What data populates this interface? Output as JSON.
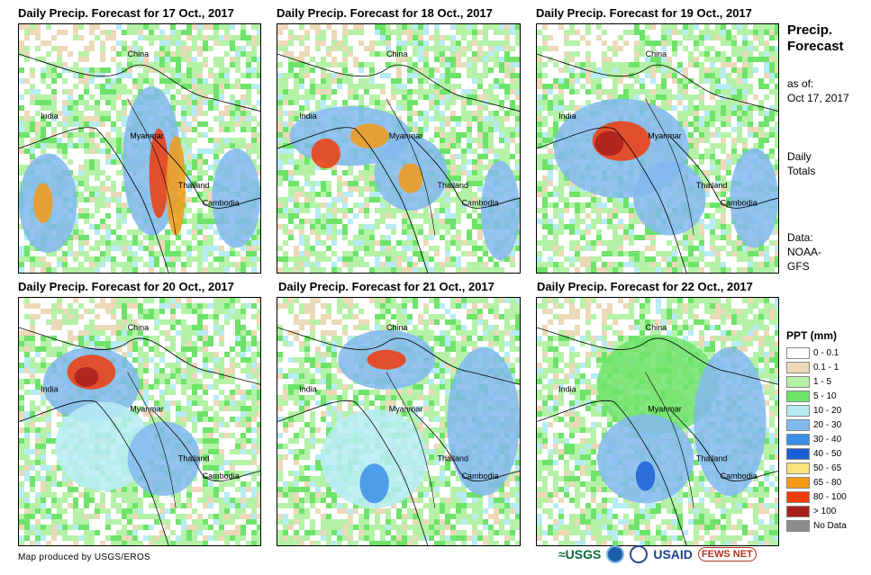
{
  "panels": [
    {
      "title": "Daily Precip. Forecast for 17 Oct., 2017"
    },
    {
      "title": "Daily Precip. Forecast for 18 Oct., 2017"
    },
    {
      "title": "Daily Precip. Forecast for 19 Oct., 2017"
    },
    {
      "title": "Daily Precip. Forecast for 20 Oct., 2017"
    },
    {
      "title": "Daily Precip. Forecast for 21 Oct., 2017"
    },
    {
      "title": "Daily Precip. Forecast for 22 Oct., 2017"
    }
  ],
  "map_labels": {
    "china": "China",
    "india": "India",
    "myanmar": "Myanmar",
    "thailand": "Thailand",
    "cambodia": "Cambodia"
  },
  "side": {
    "title_line1": "Precip.",
    "title_line2": "Forecast",
    "asof_label": "as of:",
    "asof_date": "Oct 17, 2017",
    "daily1": "Daily",
    "daily2": "Totals",
    "data1": "Data:",
    "data2": "NOAA-",
    "data3": "GFS"
  },
  "legend": {
    "title": "PPT (mm)",
    "items": [
      {
        "label": "0 - 0.1",
        "color": "#ffffff"
      },
      {
        "label": "0.1 - 1",
        "color": "#ecd9b8"
      },
      {
        "label": "1 - 5",
        "color": "#b5f2a8"
      },
      {
        "label": "5 - 10",
        "color": "#6ee36a"
      },
      {
        "label": "10 - 20",
        "color": "#b7ecf4"
      },
      {
        "label": "20 - 30",
        "color": "#82b9ee"
      },
      {
        "label": "30 - 40",
        "color": "#3c8fe6"
      },
      {
        "label": "40 - 50",
        "color": "#1a5fd6"
      },
      {
        "label": "50 - 65",
        "color": "#fbe27a"
      },
      {
        "label": "65 - 80",
        "color": "#f59a17"
      },
      {
        "label": "80 - 100",
        "color": "#f03b0c"
      },
      {
        "label": "> 100",
        "color": "#a8201c"
      },
      {
        "label": "No Data",
        "color": "#8c8c8c"
      }
    ]
  },
  "credit": "Map produced by USGS/EROS",
  "logos": {
    "usgs": "≈USGS",
    "usaid": "USAID",
    "fews": "FEWS NET"
  }
}
